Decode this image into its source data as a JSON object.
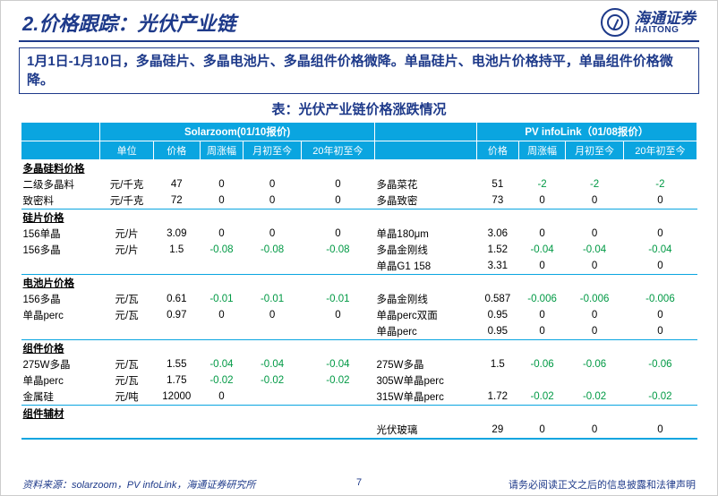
{
  "header": {
    "title": "2.价格跟踪：光伏产业链",
    "logo_cn": "海通证券",
    "logo_en": "HAITONG"
  },
  "summary": "1月1日-1月10日，多晶硅片、多晶电池片、多晶组件价格微降。单晶硅片、电池片价格持平，单晶组件价格微降。",
  "table_title": "表：光伏产业链价格涨跌情况",
  "colors": {
    "brand": "#1e3a8a",
    "header_bg": "#0aa5e0",
    "negative": "#009944"
  },
  "table": {
    "left_source": "Solarzoom(01/10报价)",
    "right_source": "PV infoLink（01/08报价）",
    "col_headers_left": [
      "单位",
      "价格",
      "周涨幅",
      "月初至今",
      "20年初至今"
    ],
    "col_headers_right": [
      "价格",
      "周涨幅",
      "月初至今",
      "20年初至今"
    ],
    "sections": [
      {
        "name": "多晶硅料价格",
        "rows": [
          {
            "l_label": "二级多晶料",
            "unit": "元/千克",
            "l_price": "47",
            "l_w": "0",
            "l_m": "0",
            "l_y": "0",
            "r_label": "多晶菜花",
            "r_price": "51",
            "r_w": "-2",
            "r_m": "-2",
            "r_y": "-2"
          },
          {
            "l_label": "致密料",
            "unit": "元/千克",
            "l_price": "72",
            "l_w": "0",
            "l_m": "0",
            "l_y": "0",
            "r_label": "多晶致密",
            "r_price": "73",
            "r_w": "0",
            "r_m": "0",
            "r_y": "0"
          }
        ]
      },
      {
        "name": "硅片价格",
        "rows": [
          {
            "l_label": "156单晶",
            "unit": "元/片",
            "l_price": "3.09",
            "l_w": "0",
            "l_m": "0",
            "l_y": "0",
            "r_label": "单晶180μm",
            "r_price": "3.06",
            "r_w": "0",
            "r_m": "0",
            "r_y": "0"
          },
          {
            "l_label": "156多晶",
            "unit": "元/片",
            "l_price": "1.5",
            "l_w": "-0.08",
            "l_m": "-0.08",
            "l_y": "-0.08",
            "r_label": "多晶金刚线",
            "r_price": "1.52",
            "r_w": "-0.04",
            "r_m": "-0.04",
            "r_y": "-0.04"
          },
          {
            "l_label": "",
            "unit": "",
            "l_price": "",
            "l_w": "",
            "l_m": "",
            "l_y": "",
            "r_label": "单晶G1 158",
            "r_price": "3.31",
            "r_w": "0",
            "r_m": "0",
            "r_y": "0"
          }
        ]
      },
      {
        "name": "电池片价格",
        "rows": [
          {
            "l_label": "156多晶",
            "unit": "元/瓦",
            "l_price": "0.61",
            "l_w": "-0.01",
            "l_m": "-0.01",
            "l_y": "-0.01",
            "r_label": "多晶金刚线",
            "r_price": "0.587",
            "r_w": "-0.006",
            "r_m": "-0.006",
            "r_y": "-0.006"
          },
          {
            "l_label": "单晶perc",
            "unit": "元/瓦",
            "l_price": "0.97",
            "l_w": "0",
            "l_m": "0",
            "l_y": "0",
            "r_label": "单晶perc双面",
            "r_price": "0.95",
            "r_w": "0",
            "r_m": "0",
            "r_y": "0"
          },
          {
            "l_label": "",
            "unit": "",
            "l_price": "",
            "l_w": "",
            "l_m": "",
            "l_y": "",
            "r_label": "单晶perc",
            "r_price": "0.95",
            "r_w": "0",
            "r_m": "0",
            "r_y": "0"
          }
        ]
      },
      {
        "name": "组件价格",
        "rows": [
          {
            "l_label": "275W多晶",
            "unit": "元/瓦",
            "l_price": "1.55",
            "l_w": "-0.04",
            "l_m": "-0.04",
            "l_y": "-0.04",
            "r_label": "275W多晶",
            "r_price": "1.5",
            "r_w": "-0.06",
            "r_m": "-0.06",
            "r_y": "-0.06"
          },
          {
            "l_label": "单晶perc",
            "unit": "元/瓦",
            "l_price": "1.75",
            "l_w": "-0.02",
            "l_m": "-0.02",
            "l_y": "-0.02",
            "r_label": "305W单晶perc",
            "r_price": "",
            "r_w": "",
            "r_m": "",
            "r_y": ""
          },
          {
            "l_label": "金属硅",
            "unit": "元/吨",
            "l_price": "12000",
            "l_w": "0",
            "l_m": "",
            "l_y": "",
            "r_label": "315W单晶perc",
            "r_price": "1.72",
            "r_w": "-0.02",
            "r_m": "-0.02",
            "r_y": "-0.02"
          }
        ]
      },
      {
        "name": "组件辅材",
        "rows": [
          {
            "l_label": "",
            "unit": "",
            "l_price": "",
            "l_w": "",
            "l_m": "",
            "l_y": "",
            "r_label": "光伏玻璃",
            "r_price": "29",
            "r_w": "0",
            "r_m": "0",
            "r_y": "0"
          }
        ]
      }
    ]
  },
  "footer": {
    "source": "资料来源：solarzoom，PV infoLink，海通证券研究所",
    "page": "7",
    "disclaimer": "请务必阅读正文之后的信息披露和法律声明"
  }
}
